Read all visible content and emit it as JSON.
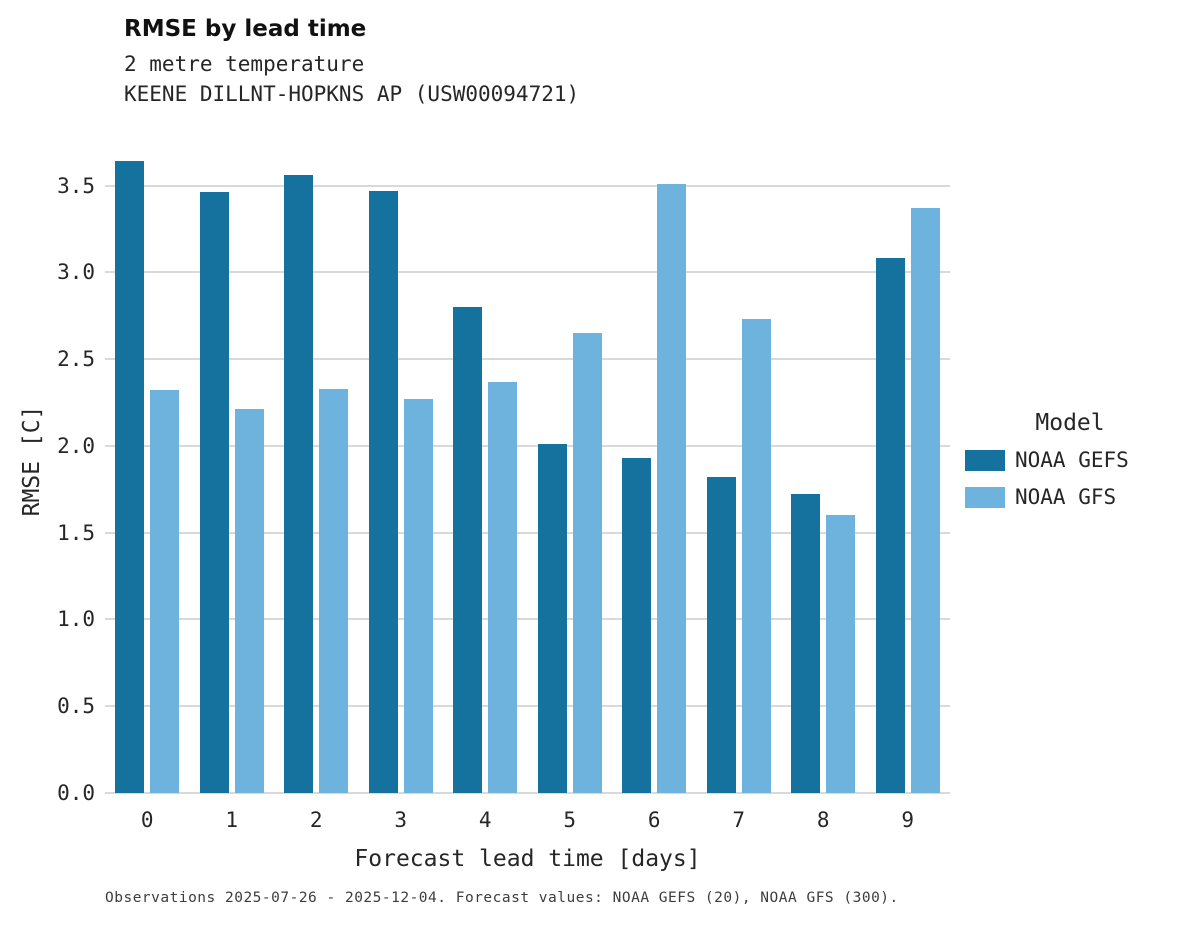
{
  "chart_data": {
    "type": "bar",
    "title": "RMSE by lead time",
    "subtitle_lines": [
      "2 metre temperature",
      "KEENE DILLNT-HOPKNS AP (USW00094721)"
    ],
    "xlabel": "Forecast lead time [days]",
    "ylabel": "RMSE [C]",
    "categories": [
      "0",
      "1",
      "2",
      "3",
      "4",
      "5",
      "6",
      "7",
      "8",
      "9"
    ],
    "series": [
      {
        "name": "NOAA GEFS",
        "color": "#15719d",
        "values": [
          3.64,
          3.46,
          3.56,
          3.47,
          2.8,
          2.01,
          1.93,
          1.82,
          1.72,
          3.08
        ]
      },
      {
        "name": "NOAA GFS",
        "color": "#6db3de",
        "values": [
          2.32,
          2.21,
          2.33,
          2.27,
          2.37,
          2.65,
          3.51,
          2.73,
          1.6,
          3.37
        ]
      }
    ],
    "yticks": [
      0.0,
      0.5,
      1.0,
      1.5,
      2.0,
      2.5,
      3.0,
      3.5
    ],
    "ylim": [
      0,
      3.82
    ],
    "grid": "horizontal",
    "legend_title": "Model",
    "legend_position": "right",
    "caption": "Observations 2025-07-26 - 2025-12-04. Forecast values: NOAA GEFS (20), NOAA GFS (300)."
  }
}
